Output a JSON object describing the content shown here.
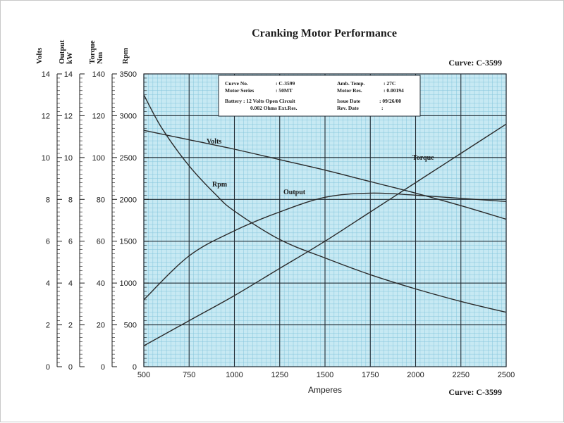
{
  "chart_data": {
    "type": "line",
    "title": "Cranking Motor Performance",
    "curve_code_top": "Curve: C-3599",
    "curve_code_bottom": "Curve: C-3599",
    "xlabel": "Amperes",
    "xlim": [
      500,
      2500
    ],
    "x_ticks": [
      500,
      750,
      1000,
      1250,
      1500,
      1750,
      2000,
      2250,
      2500
    ],
    "grid": true,
    "colors": {
      "plot_bg": "#c7e9f3",
      "minor_grid": "#86c6dc",
      "major_grid": "#1f2a33",
      "curve": "#2a2a2a"
    },
    "axes": [
      {
        "id": "volts",
        "title_lines": [
          "Volts"
        ],
        "range": [
          0,
          14
        ],
        "ticks": [
          0,
          2,
          4,
          6,
          8,
          10,
          12,
          14
        ]
      },
      {
        "id": "output",
        "title_lines": [
          "Output",
          "kW"
        ],
        "range": [
          0,
          14
        ],
        "ticks": [
          0,
          2,
          4,
          6,
          8,
          10,
          12,
          14
        ]
      },
      {
        "id": "torque",
        "title_lines": [
          "Torque",
          "Nm"
        ],
        "range": [
          0,
          140
        ],
        "ticks": [
          0,
          20,
          40,
          60,
          80,
          100,
          120,
          140
        ]
      },
      {
        "id": "rpm",
        "title_lines": [
          "Rpm"
        ],
        "range": [
          0,
          3500
        ],
        "ticks": [
          0,
          500,
          1000,
          1500,
          2000,
          2500,
          3000,
          3500
        ]
      }
    ],
    "series": [
      {
        "name": "Volts",
        "axis": "volts",
        "x": [
          500,
          750,
          1000,
          1250,
          1500,
          1750,
          2000,
          2250,
          2500
        ],
        "y": [
          11.3,
          10.85,
          10.4,
          9.9,
          9.4,
          8.85,
          8.3,
          7.7,
          7.05
        ]
      },
      {
        "name": "Rpm",
        "axis": "rpm",
        "x": [
          500,
          600,
          750,
          900,
          1000,
          1250,
          1500,
          1750,
          2000,
          2250,
          2500
        ],
        "y": [
          3250,
          2850,
          2400,
          2050,
          1860,
          1520,
          1300,
          1100,
          930,
          780,
          650
        ]
      },
      {
        "name": "Output",
        "axis": "output",
        "x": [
          500,
          750,
          1000,
          1250,
          1500,
          1750,
          2000,
          2250,
          2500
        ],
        "y": [
          3.2,
          5.3,
          6.5,
          7.4,
          8.1,
          8.3,
          8.2,
          8.05,
          7.9
        ]
      },
      {
        "name": "Torque",
        "axis": "torque",
        "x": [
          500,
          750,
          1000,
          1250,
          1500,
          1750,
          2000,
          2250,
          2500
        ],
        "y": [
          10,
          22,
          34,
          47,
          60,
          74,
          88,
          102,
          116
        ]
      }
    ],
    "info_box": {
      "row1": {
        "label1": "Curve No.",
        "value1": ": C-3599",
        "label2": "Amb. Temp.",
        "value2": ": 27C"
      },
      "row2": {
        "label1": "Motor Series",
        "value1": ": 50MT",
        "label2": "Motor Res.",
        "value2": ": 0.00194"
      },
      "row3": {
        "label1": "Battery : 12 Volts Open Circuit",
        "label2": "Issue Date",
        "value2": ": 09/26/00"
      },
      "row4": {
        "label1": "0.002 Ohms Ext.Res.",
        "label2": "Rev. Date",
        "value2": ":"
      }
    }
  }
}
